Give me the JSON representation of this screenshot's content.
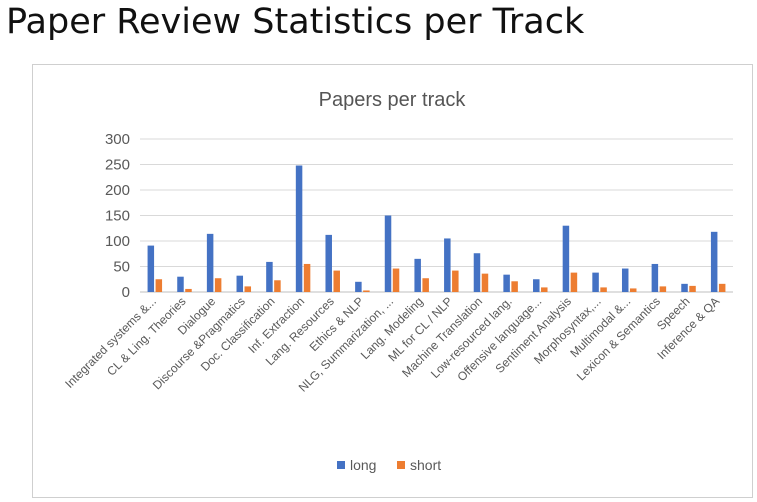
{
  "slide": {
    "title": "Paper Review Statistics per Track"
  },
  "chart_data": {
    "type": "bar",
    "title": "Papers per track",
    "xlabel": "",
    "ylabel": "",
    "ylim": [
      0,
      300
    ],
    "yticks": [
      0,
      50,
      100,
      150,
      200,
      250,
      300
    ],
    "grid": true,
    "legend": "bottom",
    "categories": [
      "Integrated systems &...",
      "CL & Ling. Theories",
      "Dialogue",
      "Discourse &Pragmatics",
      "Doc. Classification",
      "Inf. Extraction",
      "Lang. Resources",
      "Ethics & NLP",
      "NLG, Summarization, ...",
      "Lang. Modeling",
      "ML for CL / NLP",
      "Machine Translation",
      "Low-resourced lang.",
      "Offensive language...",
      "Sentiment Analysis",
      "Morphosyntax,...",
      "Multimodal &...",
      "Lexicon & Semantics",
      "Speech",
      "Inference & QA"
    ],
    "series": [
      {
        "name": "long",
        "color": "#4472C4",
        "values": [
          91,
          30,
          114,
          32,
          59,
          248,
          112,
          20,
          150,
          65,
          105,
          76,
          34,
          25,
          130,
          38,
          46,
          55,
          16,
          118
        ]
      },
      {
        "name": "short",
        "color": "#ED7D31",
        "values": [
          25,
          6,
          27,
          11,
          23,
          55,
          42,
          3,
          46,
          27,
          42,
          36,
          21,
          9,
          38,
          9,
          7,
          11,
          12,
          16
        ]
      }
    ]
  }
}
